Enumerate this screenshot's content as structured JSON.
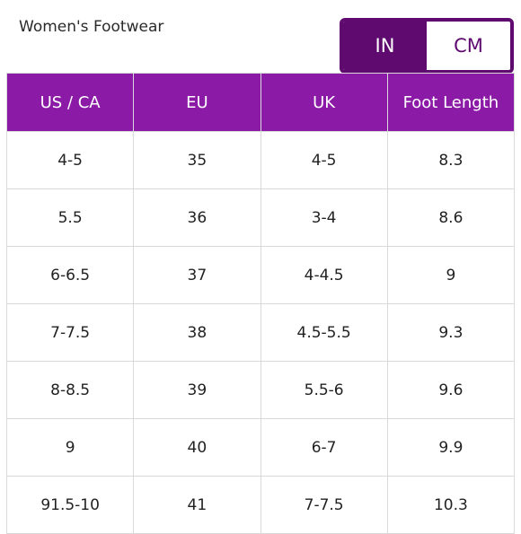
{
  "header": {
    "title": "Women's Footwear"
  },
  "unit_toggle": {
    "options": [
      "IN",
      "CM"
    ],
    "selected": "IN"
  },
  "colors": {
    "header_bg": "#8b1aa6",
    "toggle_active_bg": "#5f0a6e"
  },
  "table": {
    "columns": [
      "US / CA",
      "EU",
      "UK",
      "Foot Length"
    ],
    "rows": [
      [
        "4-5",
        "35",
        "4-5",
        "8.3"
      ],
      [
        "5.5",
        "36",
        "3-4",
        "8.6"
      ],
      [
        "6-6.5",
        "37",
        "4-4.5",
        "9"
      ],
      [
        "7-7.5",
        "38",
        "4.5-5.5",
        "9.3"
      ],
      [
        "8-8.5",
        "39",
        "5.5-6",
        "9.6"
      ],
      [
        "9",
        "40",
        "6-7",
        "9.9"
      ],
      [
        "91.5-10",
        "41",
        "7-7.5",
        "10.3"
      ]
    ]
  }
}
